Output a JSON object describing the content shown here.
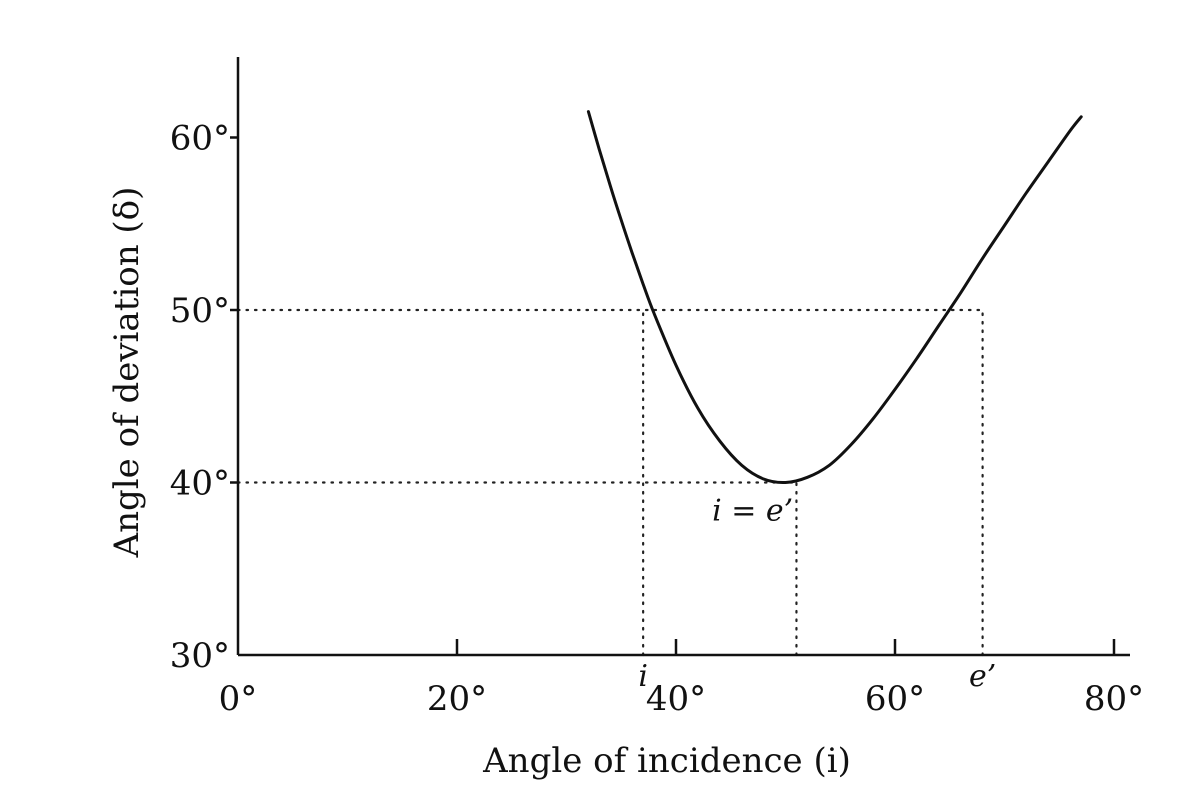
{
  "chart_data": {
    "type": "line",
    "xlabel": "Angle of incidence (i)",
    "ylabel": "Angle of deviation (δ)",
    "xlim": [
      0,
      85
    ],
    "ylim": [
      30,
      65
    ],
    "x_ticks": [
      {
        "value": 0,
        "label": "0°"
      },
      {
        "value": 20,
        "label": "20°"
      },
      {
        "value": 40,
        "label": "40°"
      },
      {
        "value": 60,
        "label": "60°"
      },
      {
        "value": 80,
        "label": "80°"
      }
    ],
    "y_ticks": [
      {
        "value": 30,
        "label": "30°"
      },
      {
        "value": 40,
        "label": "40°"
      },
      {
        "value": 50,
        "label": "50°"
      },
      {
        "value": 60,
        "label": "60°"
      }
    ],
    "series": [
      {
        "x": [
          32,
          33,
          34,
          35,
          36,
          37,
          38,
          40,
          42,
          44,
          46,
          48,
          50,
          52,
          54,
          56,
          58,
          60,
          62,
          64,
          66,
          68,
          70,
          72,
          74,
          76,
          77
        ],
        "y": [
          61.5,
          59.3,
          57.2,
          55.2,
          53.3,
          51.5,
          49.8,
          46.8,
          44.3,
          42.4,
          41.0,
          40.2,
          40.0,
          40.3,
          41.0,
          42.2,
          43.7,
          45.4,
          47.2,
          49.1,
          51.0,
          53.0,
          54.9,
          56.8,
          58.6,
          60.4,
          61.2
        ]
      }
    ],
    "reference_lines": [
      {
        "axis": "y",
        "value": 50,
        "from_x": 0,
        "to_x": 68,
        "style": "dotted"
      },
      {
        "axis": "y",
        "value": 40,
        "from_x": 0,
        "to_x": 51,
        "style": "dotted"
      },
      {
        "axis": "x",
        "value": 37,
        "from_y": 30,
        "to_y": 50,
        "style": "dotted"
      },
      {
        "axis": "x",
        "value": 51,
        "from_y": 30,
        "to_y": 40,
        "style": "dotted"
      },
      {
        "axis": "x",
        "value": 68,
        "from_y": 30,
        "to_y": 50,
        "style": "dotted"
      }
    ],
    "annotations": [
      {
        "text": "i = e’",
        "x": 47,
        "y": 37.8
      },
      {
        "text": "i",
        "x": 37,
        "y": 28.2
      },
      {
        "text": "e’",
        "x": 68,
        "y": 28.2
      }
    ],
    "grid": false,
    "legend": "none"
  }
}
